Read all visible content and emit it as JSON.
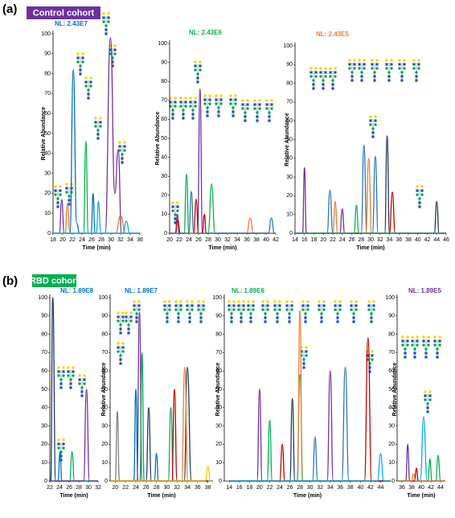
{
  "figure": {
    "panels": [
      {
        "label": "(a)",
        "cohort": "Control cohort",
        "cohort_color": "#7030a0"
      },
      {
        "label": "(b)",
        "cohort": "RBD cohort",
        "cohort_color": "#00b050"
      }
    ]
  },
  "chart_data": [
    {
      "type": "line",
      "annotation": "NL: 2.43E7",
      "annotation_color": "#0070c0",
      "xlabel": "Time (min)",
      "ylabel": "Relative Abundance",
      "xlim": [
        18,
        36
      ],
      "xticks": [
        18,
        20,
        22,
        24,
        26,
        28,
        30,
        32,
        34,
        36
      ],
      "ylim": [
        0,
        100
      ],
      "yticks": [
        0,
        10,
        20,
        30,
        40,
        50,
        60,
        70,
        80,
        90,
        100
      ],
      "series": [
        {
          "color": "#7030a0",
          "x": [
            18,
            19.3,
            19.8,
            20.3,
            21,
            28.8,
            29.9,
            30.8,
            31.5,
            32.2,
            36
          ],
          "values": [
            0,
            0,
            17,
            0,
            0,
            0,
            98,
            20,
            42,
            0,
            0
          ]
        },
        {
          "color": "#0070c0",
          "x": [
            18,
            21.5,
            22.2,
            22.9,
            23.5,
            25.9,
            26.3,
            26.7,
            36
          ],
          "values": [
            0,
            0,
            82,
            5,
            0,
            0,
            20,
            0,
            0
          ]
        },
        {
          "color": "#00b050",
          "x": [
            18,
            24.3,
            24.8,
            25.3,
            36
          ],
          "values": [
            0,
            0,
            46,
            0,
            0
          ]
        },
        {
          "color": "#ed7d31",
          "x": [
            18,
            20.5,
            21,
            21.5,
            31,
            32,
            33,
            36
          ],
          "values": [
            0,
            0,
            15,
            0,
            0,
            9,
            0,
            0
          ]
        },
        {
          "color": "#00b0f0",
          "x": [
            18,
            27,
            27.4,
            27.9,
            32.5,
            33.2,
            33.9,
            36
          ],
          "values": [
            0,
            0,
            16,
            0,
            0,
            6,
            0,
            0
          ]
        }
      ]
    },
    {
      "type": "line",
      "annotation": "NL: 2.43E6",
      "annotation_color": "#00b050",
      "xlabel": "Time (min)",
      "ylabel": "Relative Abundance",
      "xlim": [
        20,
        42
      ],
      "xticks": [
        20,
        22,
        24,
        26,
        28,
        30,
        32,
        34,
        36,
        38,
        40,
        42
      ],
      "ylim": [
        0,
        100
      ],
      "yticks": [
        0,
        10,
        20,
        30,
        40,
        50,
        60,
        70,
        80,
        90,
        100
      ],
      "series": [
        {
          "color": "#7030a0",
          "x": [
            20,
            21.2,
            21.6,
            22,
            25.8,
            26.3,
            26.8,
            42
          ],
          "values": [
            0,
            0,
            10,
            0,
            0,
            76,
            0,
            0
          ]
        },
        {
          "color": "#00b050",
          "x": [
            20,
            23,
            23.5,
            24,
            28,
            28.7,
            29.4,
            42
          ],
          "values": [
            0,
            0,
            31,
            0,
            0,
            26,
            0,
            0
          ]
        },
        {
          "color": "#c00000",
          "x": [
            20,
            21.2,
            21.7,
            22.2,
            25,
            25.5,
            26,
            26.8,
            27.2,
            27.6,
            42
          ],
          "values": [
            0,
            0,
            7,
            0,
            0,
            18,
            0,
            0,
            10,
            0,
            0
          ]
        },
        {
          "color": "#ed7d31",
          "x": [
            20,
            36,
            36.7,
            37.4,
            42
          ],
          "values": [
            0,
            0,
            8,
            0,
            0
          ]
        },
        {
          "color": "#2e75b6",
          "x": [
            20,
            24,
            24.5,
            25,
            40.5,
            41.1,
            41.7,
            42
          ],
          "values": [
            0,
            0,
            22,
            0,
            0,
            8,
            0,
            0
          ]
        }
      ]
    },
    {
      "type": "line",
      "annotation": "NL: 2.43E5",
      "annotation_color": "#ed7d31",
      "xlabel": "Time (min)",
      "ylabel": "Relative Abundance",
      "xlim": [
        14,
        46
      ],
      "xticks": [
        14,
        16,
        18,
        20,
        22,
        24,
        26,
        28,
        30,
        32,
        34,
        36,
        38,
        40,
        42,
        44,
        46
      ],
      "ylim": [
        0,
        100
      ],
      "yticks": [
        0,
        10,
        20,
        30,
        40,
        50,
        60,
        70,
        80,
        90,
        100
      ],
      "series": [
        {
          "color": "#7030a0",
          "x": [
            14,
            15.6,
            16,
            16.4,
            23.5,
            24,
            24.5,
            46
          ],
          "values": [
            0,
            0,
            35,
            0,
            0,
            13,
            0,
            0
          ]
        },
        {
          "color": "#2e75b6",
          "x": [
            14,
            20.8,
            21.4,
            22,
            28,
            28.6,
            29.2,
            30.4,
            31,
            31.6,
            46
          ],
          "values": [
            0,
            0,
            23,
            0,
            0,
            47,
            0,
            0,
            41,
            0,
            0
          ]
        },
        {
          "color": "#ed7d31",
          "x": [
            14,
            22,
            22.5,
            23,
            29,
            29.6,
            30.2,
            46
          ],
          "values": [
            0,
            0,
            17,
            0,
            0,
            40,
            0,
            0
          ]
        },
        {
          "color": "#1f3864",
          "x": [
            14,
            33,
            33.5,
            34,
            43.5,
            44,
            44.5,
            46
          ],
          "values": [
            0,
            0,
            52,
            0,
            0,
            17,
            0,
            0
          ]
        },
        {
          "color": "#c00000",
          "x": [
            14,
            34,
            34.6,
            35.2,
            46
          ],
          "values": [
            0,
            0,
            22,
            0,
            0
          ]
        },
        {
          "color": "#00b050",
          "x": [
            14,
            26.5,
            27,
            27.5,
            46
          ],
          "values": [
            0,
            0,
            15,
            0,
            0
          ]
        }
      ]
    },
    {
      "type": "line",
      "annotation": "NL: 1.89E8",
      "annotation_color": "#0070c0",
      "xlabel": "Time (min)",
      "xlim": [
        22,
        32
      ],
      "xticks": [
        22,
        24,
        26,
        28,
        30,
        32
      ],
      "ylim": [
        0,
        100
      ],
      "yticks": [
        0,
        10,
        20,
        30,
        40,
        50,
        60,
        70,
        80,
        90,
        100
      ],
      "series": [
        {
          "color": "#1f3864",
          "x": [
            22,
            22.2,
            22.6,
            23.2,
            32
          ],
          "values": [
            0,
            0,
            100,
            0,
            0
          ]
        },
        {
          "color": "#0070c0",
          "x": [
            22,
            23.7,
            24.1,
            24.5,
            32
          ],
          "values": [
            0,
            0,
            16,
            0,
            0
          ]
        },
        {
          "color": "#00b050",
          "x": [
            22,
            26.1,
            26.6,
            27.1,
            32
          ],
          "values": [
            0,
            0,
            16,
            0,
            0
          ]
        },
        {
          "color": "#7030a0",
          "x": [
            22,
            29,
            29.6,
            30.2,
            32
          ],
          "values": [
            0,
            0,
            50,
            0,
            0
          ]
        }
      ]
    },
    {
      "type": "line",
      "annotation": "NL: 1.89E7",
      "annotation_color": "#0070c0",
      "xlabel": "Time (min)",
      "ylabel": "Relative Abundance",
      "xlim": [
        19,
        39
      ],
      "xticks": [
        20,
        22,
        24,
        26,
        28,
        30,
        32,
        34,
        36,
        38
      ],
      "ylim": [
        0,
        100
      ],
      "yticks": [
        0,
        10,
        20,
        30,
        40,
        50,
        60,
        70,
        80,
        90,
        100
      ],
      "series": [
        {
          "color": "#808080",
          "x": [
            19,
            20,
            20.4,
            20.8,
            38
          ],
          "values": [
            0,
            0,
            38,
            0,
            0
          ]
        },
        {
          "color": "#0070c0",
          "x": [
            19,
            23.6,
            24,
            24.4,
            27.6,
            28,
            28.4,
            38
          ],
          "values": [
            0,
            0,
            50,
            0,
            0,
            15,
            0,
            0
          ]
        },
        {
          "color": "#7030a0",
          "x": [
            19,
            24.2,
            24.7,
            25.2,
            38
          ],
          "values": [
            0,
            0,
            92,
            0,
            0
          ]
        },
        {
          "color": "#00b050",
          "x": [
            19,
            24.8,
            25.2,
            25.6,
            30.3,
            30.8,
            31.3,
            38
          ],
          "values": [
            0,
            0,
            70,
            0,
            0,
            40,
            0,
            0
          ]
        },
        {
          "color": "#1f3864",
          "x": [
            19,
            26,
            26.5,
            27,
            33.4,
            34,
            34.8,
            38
          ],
          "values": [
            0,
            0,
            40,
            0,
            0,
            62,
            0,
            0
          ]
        },
        {
          "color": "#ed7d31",
          "x": [
            19,
            32.9,
            33.5,
            34.1,
            38
          ],
          "values": [
            0,
            0,
            62,
            0,
            0
          ]
        },
        {
          "color": "#c00000",
          "x": [
            19,
            31,
            31.5,
            32,
            38
          ],
          "values": [
            0,
            0,
            50,
            0,
            0
          ]
        },
        {
          "color": "#ffc000",
          "x": [
            19,
            37.5,
            38,
            38.5
          ],
          "values": [
            0,
            0,
            8,
            0
          ]
        }
      ]
    },
    {
      "type": "line",
      "annotation": "NL: 1.89E6",
      "annotation_color": "#00b050",
      "xlabel": "Time (min)",
      "ylabel": "Relative Abundance",
      "xlim": [
        13,
        46
      ],
      "xticks": [
        14,
        16,
        18,
        20,
        22,
        24,
        26,
        28,
        30,
        32,
        34,
        36,
        38,
        40,
        42,
        44
      ],
      "ylim": [
        0,
        100
      ],
      "yticks": [
        0,
        10,
        20,
        30,
        40,
        50,
        60,
        70,
        80,
        90,
        100
      ],
      "series": [
        {
          "color": "#7030a0",
          "x": [
            14,
            19.5,
            20,
            20.5,
            33.4,
            34,
            34.6,
            46
          ],
          "values": [
            0,
            0,
            50,
            0,
            0,
            60,
            0,
            0
          ]
        },
        {
          "color": "#00b050",
          "x": [
            14,
            21.5,
            22,
            22.5,
            27.4,
            28,
            28.6,
            46
          ],
          "values": [
            0,
            0,
            33,
            0,
            0,
            58,
            0,
            0
          ]
        },
        {
          "color": "#ed7d31",
          "x": [
            14,
            27.5,
            28,
            28.5,
            46
          ],
          "values": [
            0,
            0,
            93,
            0,
            0
          ]
        },
        {
          "color": "#1f3864",
          "x": [
            14,
            26,
            26.5,
            27,
            46
          ],
          "values": [
            0,
            0,
            45,
            0,
            0
          ]
        },
        {
          "color": "#2e75b6",
          "x": [
            14,
            30.5,
            31,
            31.5,
            36.3,
            37,
            37.7,
            46
          ],
          "values": [
            0,
            0,
            24,
            0,
            0,
            62,
            0,
            0
          ]
        },
        {
          "color": "#c00000",
          "x": [
            14,
            24,
            24.5,
            25,
            40.8,
            41.5,
            42.2,
            46
          ],
          "values": [
            0,
            0,
            20,
            0,
            0,
            78,
            0,
            0
          ]
        },
        {
          "color": "#00b0f0",
          "x": [
            14,
            43.4,
            44,
            44.6,
            46
          ],
          "values": [
            0,
            0,
            15,
            0,
            0
          ]
        }
      ]
    },
    {
      "type": "line",
      "annotation": "NL: 1.89E5",
      "annotation_color": "#7030a0",
      "xlabel": "Time (min)",
      "ylabel": "Relative Abundance",
      "xlim": [
        35,
        45
      ],
      "xticks": [
        36,
        38,
        40,
        42,
        44
      ],
      "ylim": [
        0,
        100
      ],
      "yticks": [
        0,
        10,
        20,
        30,
        40,
        50,
        60,
        70,
        80,
        90,
        100
      ],
      "series": [
        {
          "color": "#7030a0",
          "x": [
            35,
            36.8,
            37.2,
            37.6,
            45
          ],
          "values": [
            0,
            0,
            20,
            0,
            0
          ]
        },
        {
          "color": "#00b0f0",
          "x": [
            35,
            39.8,
            40.5,
            41.2,
            45
          ],
          "values": [
            0,
            0,
            35,
            0,
            0
          ]
        },
        {
          "color": "#00b050",
          "x": [
            35,
            41.4,
            41.8,
            42.2,
            43,
            43.5,
            44,
            45
          ],
          "values": [
            0,
            0,
            12,
            0,
            0,
            14,
            0,
            0
          ]
        },
        {
          "color": "#c00000",
          "x": [
            35,
            38.6,
            39,
            39.4,
            45
          ],
          "values": [
            0,
            0,
            7,
            0,
            0
          ]
        },
        {
          "color": "#ed7d31",
          "x": [
            35,
            38,
            38.4,
            38.8,
            45
          ],
          "values": [
            0,
            0,
            4,
            0,
            0
          ]
        }
      ]
    }
  ]
}
